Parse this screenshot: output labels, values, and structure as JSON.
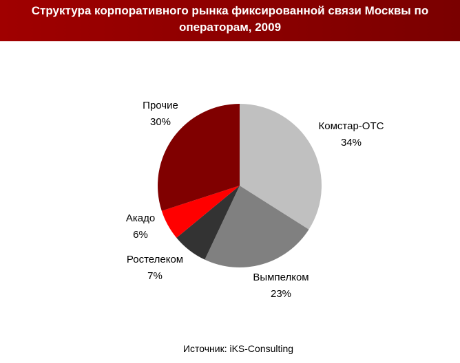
{
  "chart_data": {
    "type": "pie",
    "title": "Структура корпоративного рынка фиксированной связи Москвы по операторам, 2009",
    "categories": [
      "Комстар-ОТС",
      "Вымпелком",
      "Ростелеком",
      "Акадо",
      "Прочие"
    ],
    "values": [
      34,
      23,
      7,
      6,
      30
    ],
    "value_labels": [
      "34%",
      "23%",
      "7%",
      "6%",
      "30%"
    ],
    "colors": [
      "#c0c0c0",
      "#808080",
      "#333333",
      "#ff0000",
      "#800000"
    ],
    "source": "Источник: iKS-Consulting"
  }
}
